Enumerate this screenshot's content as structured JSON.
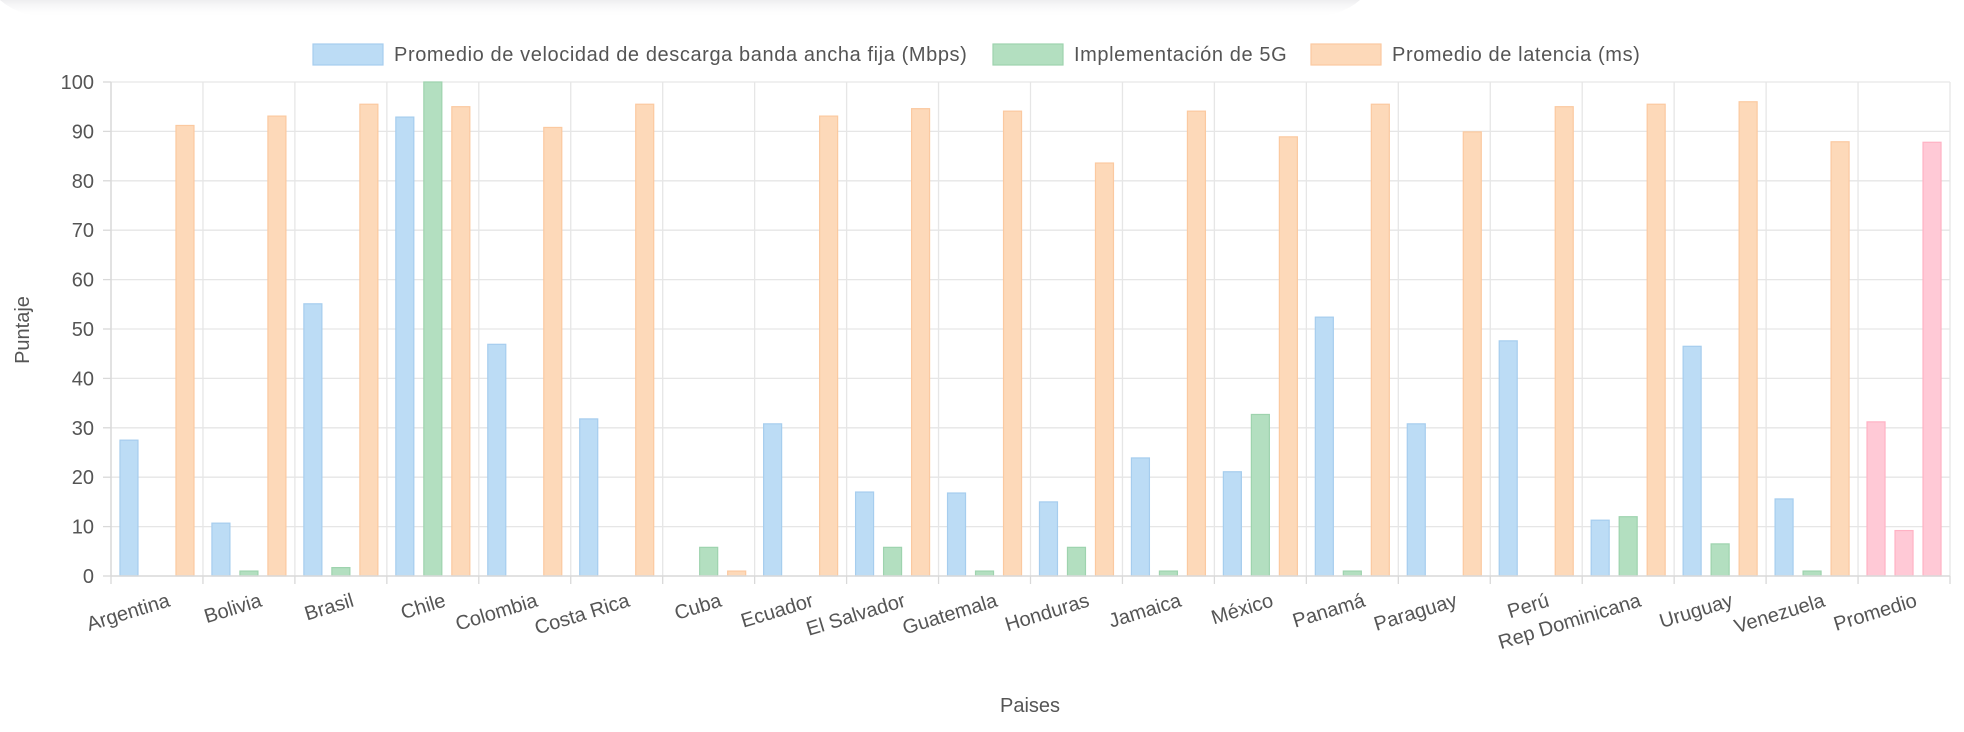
{
  "chart_data": {
    "type": "bar",
    "xlabel": "Paises",
    "ylabel": "Puntaje",
    "ylim": [
      0,
      100
    ],
    "y_ticks": [
      0,
      10,
      20,
      30,
      40,
      50,
      60,
      70,
      80,
      90,
      100
    ],
    "grid": true,
    "legend_position": "top",
    "categories": [
      "Argentina",
      "Bolivia",
      "Brasil",
      "Chile",
      "Colombia",
      "Costa Rica",
      "Cuba",
      "Ecuador",
      "El Salvador",
      "Guatemala",
      "Honduras",
      "Jamaica",
      "México",
      "Panamá",
      "Paraguay",
      "Perú",
      "Rep Dominicana",
      "Uruguay",
      "Venezuela",
      "Promedio"
    ],
    "series": [
      {
        "name": "Promedio de velocidad de descarga banda ancha fija (Mbps)",
        "color": "#bcdcf5",
        "border": "#a6cdee",
        "values": [
          27.5,
          10.7,
          55.1,
          92.9,
          46.9,
          31.8,
          0,
          30.8,
          17,
          16.8,
          15,
          23.9,
          21.1,
          52.4,
          30.8,
          47.6,
          11.3,
          46.5,
          15.6,
          31.2
        ]
      },
      {
        "name": "Implementación de 5G",
        "color": "#b3dfc0",
        "border": "#9ed3ae",
        "values": [
          0,
          1,
          1.7,
          100,
          0,
          0,
          5.8,
          0,
          5.8,
          1,
          5.8,
          1,
          32.7,
          1,
          0,
          0,
          12,
          6.5,
          1,
          9.2
        ]
      },
      {
        "name": "Promedio de latencia (ms)",
        "color": "#fdd9b9",
        "border": "#fbc9a0",
        "values": [
          91.2,
          93.1,
          95.5,
          95,
          90.8,
          95.5,
          1,
          93.1,
          94.6,
          94.1,
          83.6,
          94.1,
          88.9,
          95.5,
          89.9,
          95,
          95.5,
          96,
          87.9,
          87.8
        ]
      }
    ],
    "highlight_category": "Promedio",
    "highlight_color": "#ffc9d6",
    "highlight_border": "#ffb2c4"
  }
}
